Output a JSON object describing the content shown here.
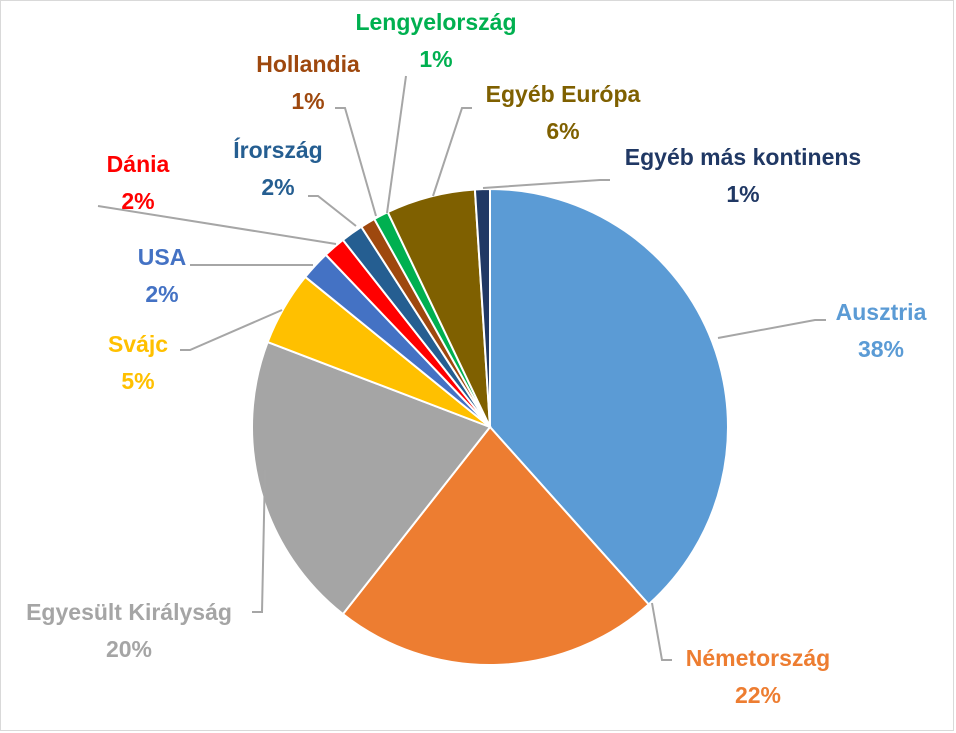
{
  "chart_data": {
    "type": "pie",
    "title": "",
    "slices": [
      {
        "label": "Ausztria",
        "value": 38,
        "value_label": "38%",
        "color": "#5b9bd5"
      },
      {
        "label": "Németország",
        "value": 22,
        "value_label": "22%",
        "color": "#ed7d31"
      },
      {
        "label": "Egyesült Királyság",
        "value": 20,
        "value_label": "20%",
        "color": "#a5a5a5"
      },
      {
        "label": "Svájc",
        "value": 5,
        "value_label": "5%",
        "color": "#ffc000"
      },
      {
        "label": "USA",
        "value": 2,
        "value_label": "2%",
        "color": "#4472c4"
      },
      {
        "label": "Dánia",
        "value": 1.5,
        "value_label": "2%",
        "color": "#ff0000"
      },
      {
        "label": "Írország",
        "value": 1.5,
        "value_label": "2%",
        "color": "#255e91"
      },
      {
        "label": "Hollandia",
        "value": 1,
        "value_label": "1%",
        "color": "#9e480e"
      },
      {
        "label": "Lengyelország",
        "value": 1,
        "value_label": "1%",
        "color": "#00b050"
      },
      {
        "label": "Egyéb Európa",
        "value": 6,
        "value_label": "6%",
        "color": "#7f6000"
      },
      {
        "label": "Egyéb más kontinens",
        "value": 1,
        "value_label": "1%",
        "color": "#203864"
      }
    ],
    "start_angle_deg": 0,
    "direction": "clockwise",
    "legend": "none",
    "data_labels": "outside with leader lines"
  }
}
